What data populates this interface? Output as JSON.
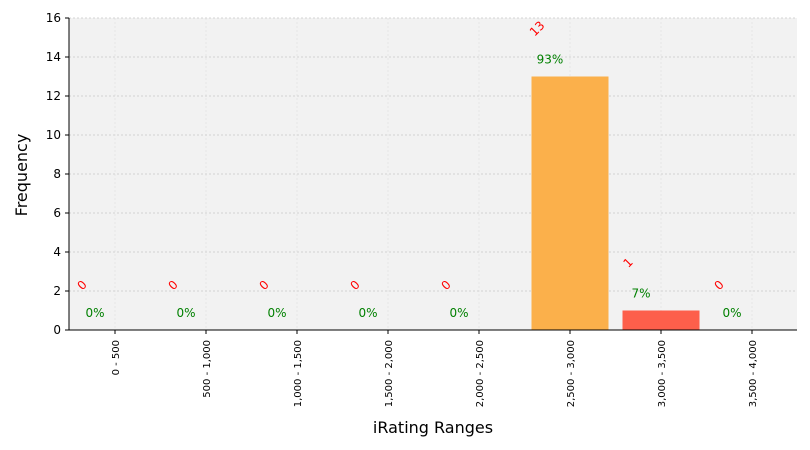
{
  "chart_data": {
    "type": "bar",
    "title": "",
    "xlabel": "iRating Ranges",
    "ylabel": "Frequency",
    "ylim": [
      0,
      16
    ],
    "yticks": [
      0,
      2,
      4,
      6,
      8,
      10,
      12,
      14,
      16
    ],
    "categories": [
      "0 - 500",
      "500 - 1,000",
      "1,000 - 1,500",
      "1,500 - 2,000",
      "2,000 - 2,500",
      "2,500 - 3,000",
      "3,000 - 3,500",
      "3,500 - 4,000"
    ],
    "values": [
      0,
      0,
      0,
      0,
      0,
      13,
      1,
      0
    ],
    "count_labels": [
      "0",
      "0",
      "0",
      "0",
      "0",
      "13",
      "1",
      "0"
    ],
    "percent_labels": [
      "0%",
      "0%",
      "0%",
      "0%",
      "0%",
      "93%",
      "7%",
      "0%"
    ],
    "bar_colors": [
      "#4da6ff",
      "#4da6ff",
      "#4da6ff",
      "#4da6ff",
      "#4da6ff",
      "#fbb04b",
      "#fd5f4b",
      "#4da6ff"
    ],
    "count_label_color": "#ff0000",
    "percent_label_color": "#008000",
    "plot_background": "#f2f2f2",
    "grid": true,
    "legend": "none"
  }
}
